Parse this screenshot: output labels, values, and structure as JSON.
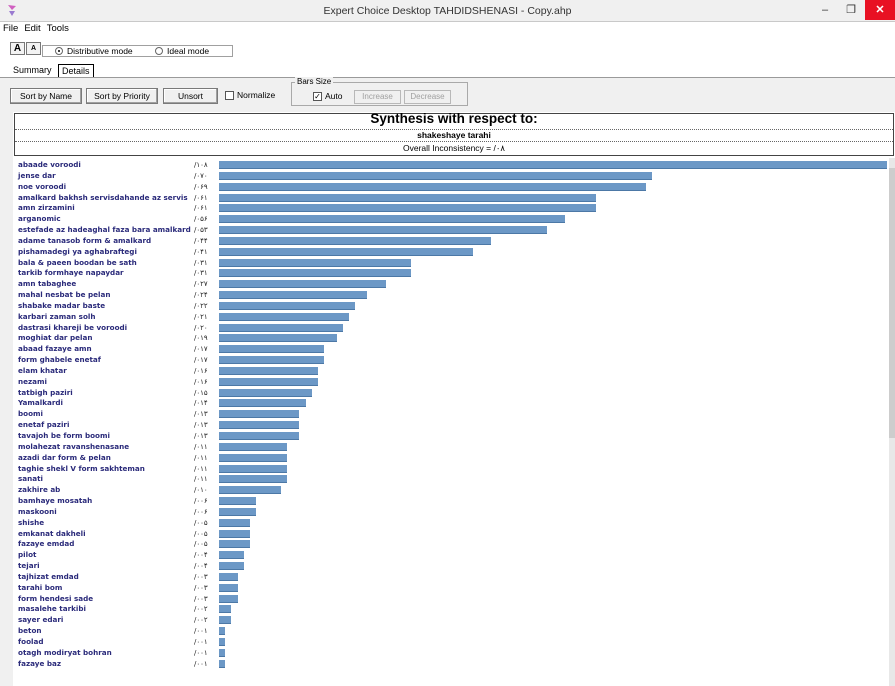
{
  "window": {
    "title": "Expert Choice Desktop   TAHDIDSHENASI - Copy.ahp",
    "minimize": "‒",
    "restore": "❐",
    "close": "✕"
  },
  "menu": {
    "items": [
      "File",
      "Edit",
      "Tools"
    ]
  },
  "font_buttons": {
    "increase": "A",
    "decrease": "A"
  },
  "mode": {
    "distributive_label": "Distributive mode",
    "ideal_label": "Ideal mode",
    "selected": "Distributive mode"
  },
  "tabs": [
    "Summary",
    "Details"
  ],
  "toolbar": {
    "sort_name": "Sort by Name",
    "sort_priority": "Sort by Priority",
    "unsort": "Unsort",
    "normalize": "Normalize",
    "bars_size_label": "Bars Size",
    "auto": "Auto",
    "increase": "Increase",
    "decrease": "Decrease"
  },
  "synthesis": {
    "title": "Synthesis with respect to:",
    "goal": "shakeshaye tarahi",
    "inconsistency": "Overall Inconsistency = /۰۸"
  },
  "colors": {
    "bar": "#6c98c6",
    "label": "#2a2a7a"
  },
  "chart_data": {
    "type": "bar",
    "orientation": "horizontal",
    "categories": [
      "abaade voroodi",
      "jense dar",
      "noe voroodi",
      "amalkard bakhsh servisdahande az servis",
      "amn zirzamini",
      "arganomic",
      "estefade az hadeaghal faza bara amalkard",
      "adame tanasob form & amalkard",
      "pishamadegi ya aghabraftegi",
      "bala & paeen boodan be sath",
      "tarkib formhaye napaydar",
      "amn tabaghee",
      "mahal nesbat be pelan",
      "shabake madar baste",
      "karbari zaman solh",
      "dastrasi khareji be voroodi",
      "moghiat dar pelan",
      "abaad fazaye amn",
      "form ghabele enetaf",
      "elam khatar",
      "nezami",
      "tatbigh paziri",
      "Yamalkardi",
      "boomi",
      "enetaf paziri",
      "tavajoh be form boomi",
      "molahezat ravanshenasane",
      "azadi dar form & pelan",
      "taghie shekl V form sakhteman",
      "sanati",
      "zakhire ab",
      "bamhaye mosatah",
      "maskooni",
      "shishe",
      "emkanat dakheli",
      "fazaye emdad",
      "pilot",
      "tejari",
      "tajhizat emdad",
      "tarahi bom",
      "form hendesi sade",
      "masalehe tarkibi",
      "sayer edari",
      "beton",
      "foolad",
      "otagh modiryat bohran",
      "fazaye baz"
    ],
    "labels": [
      "/۱۰۸",
      "/۰۷۰",
      "/۰۶۹",
      "/۰۶۱",
      "/۰۶۱",
      "/۰۵۶",
      "/۰۵۳",
      "/۰۴۴",
      "/۰۴۱",
      "/۰۳۱",
      "/۰۳۱",
      "/۰۲۷",
      "/۰۲۴",
      "/۰۲۲",
      "/۰۲۱",
      "/۰۲۰",
      "/۰۱۹",
      "/۰۱۷",
      "/۰۱۷",
      "/۰۱۶",
      "/۰۱۶",
      "/۰۱۵",
      "/۰۱۴",
      "/۰۱۳",
      "/۰۱۳",
      "/۰۱۳",
      "/۰۱۱",
      "/۰۱۱",
      "/۰۱۱",
      "/۰۱۱",
      "/۰۱۰",
      "/۰۰۶",
      "/۰۰۶",
      "/۰۰۵",
      "/۰۰۵",
      "/۰۰۵",
      "/۰۰۴",
      "/۰۰۴",
      "/۰۰۳",
      "/۰۰۳",
      "/۰۰۳",
      "/۰۰۲",
      "/۰۰۲",
      "/۰۰۱",
      "/۰۰۱",
      "/۰۰۱",
      "/۰۰۱"
    ],
    "values": [
      0.108,
      0.07,
      0.069,
      0.061,
      0.061,
      0.056,
      0.053,
      0.044,
      0.041,
      0.031,
      0.031,
      0.027,
      0.024,
      0.022,
      0.021,
      0.02,
      0.019,
      0.017,
      0.017,
      0.016,
      0.016,
      0.015,
      0.014,
      0.013,
      0.013,
      0.013,
      0.011,
      0.011,
      0.011,
      0.011,
      0.01,
      0.006,
      0.006,
      0.005,
      0.005,
      0.005,
      0.004,
      0.004,
      0.003,
      0.003,
      0.003,
      0.002,
      0.002,
      0.001,
      0.001,
      0.001,
      0.001
    ],
    "xlim": [
      0,
      0.108
    ]
  }
}
